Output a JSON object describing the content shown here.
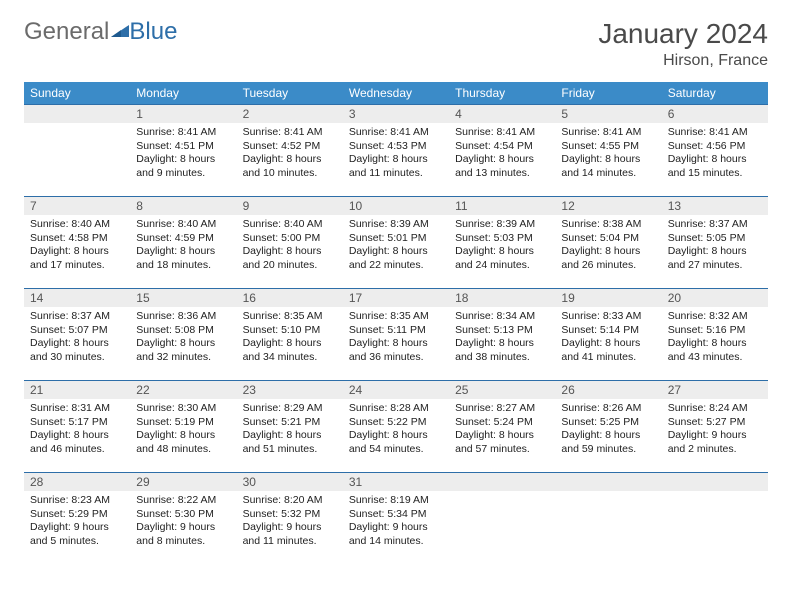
{
  "logo": {
    "part1": "General",
    "part2": "Blue"
  },
  "title": {
    "month": "January 2024",
    "location": "Hirson, France"
  },
  "colors": {
    "header_bg": "#3b8bc8",
    "header_text": "#ffffff",
    "rule": "#2d6ea8",
    "daynum_bg": "#ededed",
    "body_text": "#222222",
    "logo_gray": "#6b6b6b",
    "logo_blue": "#2d6ea8"
  },
  "weekdays": [
    "Sunday",
    "Monday",
    "Tuesday",
    "Wednesday",
    "Thursday",
    "Friday",
    "Saturday"
  ],
  "weeks": [
    [
      null,
      {
        "n": "1",
        "sr": "Sunrise: 8:41 AM",
        "ss": "Sunset: 4:51 PM",
        "d1": "Daylight: 8 hours",
        "d2": "and 9 minutes."
      },
      {
        "n": "2",
        "sr": "Sunrise: 8:41 AM",
        "ss": "Sunset: 4:52 PM",
        "d1": "Daylight: 8 hours",
        "d2": "and 10 minutes."
      },
      {
        "n": "3",
        "sr": "Sunrise: 8:41 AM",
        "ss": "Sunset: 4:53 PM",
        "d1": "Daylight: 8 hours",
        "d2": "and 11 minutes."
      },
      {
        "n": "4",
        "sr": "Sunrise: 8:41 AM",
        "ss": "Sunset: 4:54 PM",
        "d1": "Daylight: 8 hours",
        "d2": "and 13 minutes."
      },
      {
        "n": "5",
        "sr": "Sunrise: 8:41 AM",
        "ss": "Sunset: 4:55 PM",
        "d1": "Daylight: 8 hours",
        "d2": "and 14 minutes."
      },
      {
        "n": "6",
        "sr": "Sunrise: 8:41 AM",
        "ss": "Sunset: 4:56 PM",
        "d1": "Daylight: 8 hours",
        "d2": "and 15 minutes."
      }
    ],
    [
      {
        "n": "7",
        "sr": "Sunrise: 8:40 AM",
        "ss": "Sunset: 4:58 PM",
        "d1": "Daylight: 8 hours",
        "d2": "and 17 minutes."
      },
      {
        "n": "8",
        "sr": "Sunrise: 8:40 AM",
        "ss": "Sunset: 4:59 PM",
        "d1": "Daylight: 8 hours",
        "d2": "and 18 minutes."
      },
      {
        "n": "9",
        "sr": "Sunrise: 8:40 AM",
        "ss": "Sunset: 5:00 PM",
        "d1": "Daylight: 8 hours",
        "d2": "and 20 minutes."
      },
      {
        "n": "10",
        "sr": "Sunrise: 8:39 AM",
        "ss": "Sunset: 5:01 PM",
        "d1": "Daylight: 8 hours",
        "d2": "and 22 minutes."
      },
      {
        "n": "11",
        "sr": "Sunrise: 8:39 AM",
        "ss": "Sunset: 5:03 PM",
        "d1": "Daylight: 8 hours",
        "d2": "and 24 minutes."
      },
      {
        "n": "12",
        "sr": "Sunrise: 8:38 AM",
        "ss": "Sunset: 5:04 PM",
        "d1": "Daylight: 8 hours",
        "d2": "and 26 minutes."
      },
      {
        "n": "13",
        "sr": "Sunrise: 8:37 AM",
        "ss": "Sunset: 5:05 PM",
        "d1": "Daylight: 8 hours",
        "d2": "and 27 minutes."
      }
    ],
    [
      {
        "n": "14",
        "sr": "Sunrise: 8:37 AM",
        "ss": "Sunset: 5:07 PM",
        "d1": "Daylight: 8 hours",
        "d2": "and 30 minutes."
      },
      {
        "n": "15",
        "sr": "Sunrise: 8:36 AM",
        "ss": "Sunset: 5:08 PM",
        "d1": "Daylight: 8 hours",
        "d2": "and 32 minutes."
      },
      {
        "n": "16",
        "sr": "Sunrise: 8:35 AM",
        "ss": "Sunset: 5:10 PM",
        "d1": "Daylight: 8 hours",
        "d2": "and 34 minutes."
      },
      {
        "n": "17",
        "sr": "Sunrise: 8:35 AM",
        "ss": "Sunset: 5:11 PM",
        "d1": "Daylight: 8 hours",
        "d2": "and 36 minutes."
      },
      {
        "n": "18",
        "sr": "Sunrise: 8:34 AM",
        "ss": "Sunset: 5:13 PM",
        "d1": "Daylight: 8 hours",
        "d2": "and 38 minutes."
      },
      {
        "n": "19",
        "sr": "Sunrise: 8:33 AM",
        "ss": "Sunset: 5:14 PM",
        "d1": "Daylight: 8 hours",
        "d2": "and 41 minutes."
      },
      {
        "n": "20",
        "sr": "Sunrise: 8:32 AM",
        "ss": "Sunset: 5:16 PM",
        "d1": "Daylight: 8 hours",
        "d2": "and 43 minutes."
      }
    ],
    [
      {
        "n": "21",
        "sr": "Sunrise: 8:31 AM",
        "ss": "Sunset: 5:17 PM",
        "d1": "Daylight: 8 hours",
        "d2": "and 46 minutes."
      },
      {
        "n": "22",
        "sr": "Sunrise: 8:30 AM",
        "ss": "Sunset: 5:19 PM",
        "d1": "Daylight: 8 hours",
        "d2": "and 48 minutes."
      },
      {
        "n": "23",
        "sr": "Sunrise: 8:29 AM",
        "ss": "Sunset: 5:21 PM",
        "d1": "Daylight: 8 hours",
        "d2": "and 51 minutes."
      },
      {
        "n": "24",
        "sr": "Sunrise: 8:28 AM",
        "ss": "Sunset: 5:22 PM",
        "d1": "Daylight: 8 hours",
        "d2": "and 54 minutes."
      },
      {
        "n": "25",
        "sr": "Sunrise: 8:27 AM",
        "ss": "Sunset: 5:24 PM",
        "d1": "Daylight: 8 hours",
        "d2": "and 57 minutes."
      },
      {
        "n": "26",
        "sr": "Sunrise: 8:26 AM",
        "ss": "Sunset: 5:25 PM",
        "d1": "Daylight: 8 hours",
        "d2": "and 59 minutes."
      },
      {
        "n": "27",
        "sr": "Sunrise: 8:24 AM",
        "ss": "Sunset: 5:27 PM",
        "d1": "Daylight: 9 hours",
        "d2": "and 2 minutes."
      }
    ],
    [
      {
        "n": "28",
        "sr": "Sunrise: 8:23 AM",
        "ss": "Sunset: 5:29 PM",
        "d1": "Daylight: 9 hours",
        "d2": "and 5 minutes."
      },
      {
        "n": "29",
        "sr": "Sunrise: 8:22 AM",
        "ss": "Sunset: 5:30 PM",
        "d1": "Daylight: 9 hours",
        "d2": "and 8 minutes."
      },
      {
        "n": "30",
        "sr": "Sunrise: 8:20 AM",
        "ss": "Sunset: 5:32 PM",
        "d1": "Daylight: 9 hours",
        "d2": "and 11 minutes."
      },
      {
        "n": "31",
        "sr": "Sunrise: 8:19 AM",
        "ss": "Sunset: 5:34 PM",
        "d1": "Daylight: 9 hours",
        "d2": "and 14 minutes."
      },
      null,
      null,
      null
    ]
  ]
}
